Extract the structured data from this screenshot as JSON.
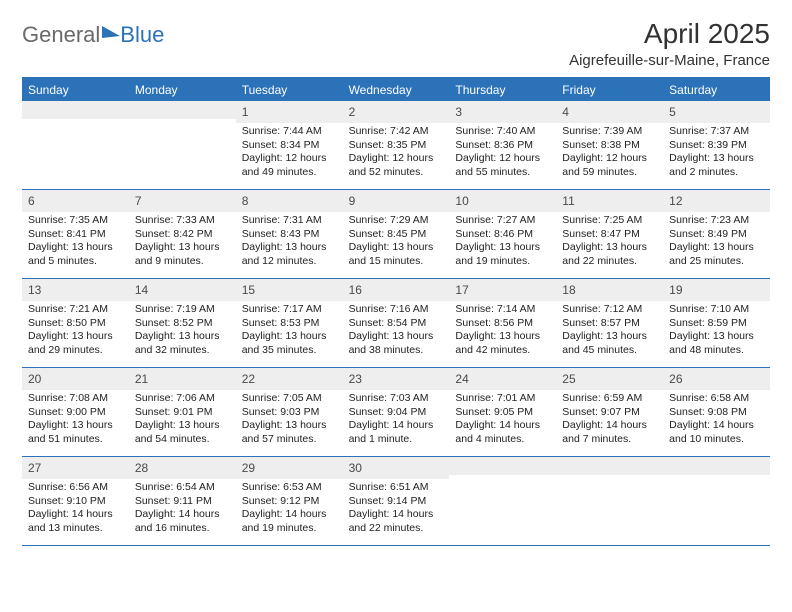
{
  "logo": {
    "general": "General",
    "blue": "Blue"
  },
  "title": {
    "month": "April 2025",
    "location": "Aigrefeuille-sur-Maine, France"
  },
  "weekdays": [
    "Sunday",
    "Monday",
    "Tuesday",
    "Wednesday",
    "Thursday",
    "Friday",
    "Saturday"
  ],
  "styling": {
    "header_bg": "#2b72b8",
    "header_text": "#ffffff",
    "daynum_bg": "#eeeeee",
    "border_color": "#2b72b8",
    "body_text": "#222222",
    "title_fontsize": 28,
    "location_fontsize": 15,
    "weekday_fontsize": 12,
    "daynum_fontsize": 12,
    "body_fontsize": 10.5,
    "page_bg": "#ffffff"
  },
  "weeks": [
    [
      {
        "empty": true
      },
      {
        "empty": true
      },
      {
        "day": "1",
        "sunrise": "Sunrise: 7:44 AM",
        "sunset": "Sunset: 8:34 PM",
        "daylight": "Daylight: 12 hours and 49 minutes."
      },
      {
        "day": "2",
        "sunrise": "Sunrise: 7:42 AM",
        "sunset": "Sunset: 8:35 PM",
        "daylight": "Daylight: 12 hours and 52 minutes."
      },
      {
        "day": "3",
        "sunrise": "Sunrise: 7:40 AM",
        "sunset": "Sunset: 8:36 PM",
        "daylight": "Daylight: 12 hours and 55 minutes."
      },
      {
        "day": "4",
        "sunrise": "Sunrise: 7:39 AM",
        "sunset": "Sunset: 8:38 PM",
        "daylight": "Daylight: 12 hours and 59 minutes."
      },
      {
        "day": "5",
        "sunrise": "Sunrise: 7:37 AM",
        "sunset": "Sunset: 8:39 PM",
        "daylight": "Daylight: 13 hours and 2 minutes."
      }
    ],
    [
      {
        "day": "6",
        "sunrise": "Sunrise: 7:35 AM",
        "sunset": "Sunset: 8:41 PM",
        "daylight": "Daylight: 13 hours and 5 minutes."
      },
      {
        "day": "7",
        "sunrise": "Sunrise: 7:33 AM",
        "sunset": "Sunset: 8:42 PM",
        "daylight": "Daylight: 13 hours and 9 minutes."
      },
      {
        "day": "8",
        "sunrise": "Sunrise: 7:31 AM",
        "sunset": "Sunset: 8:43 PM",
        "daylight": "Daylight: 13 hours and 12 minutes."
      },
      {
        "day": "9",
        "sunrise": "Sunrise: 7:29 AM",
        "sunset": "Sunset: 8:45 PM",
        "daylight": "Daylight: 13 hours and 15 minutes."
      },
      {
        "day": "10",
        "sunrise": "Sunrise: 7:27 AM",
        "sunset": "Sunset: 8:46 PM",
        "daylight": "Daylight: 13 hours and 19 minutes."
      },
      {
        "day": "11",
        "sunrise": "Sunrise: 7:25 AM",
        "sunset": "Sunset: 8:47 PM",
        "daylight": "Daylight: 13 hours and 22 minutes."
      },
      {
        "day": "12",
        "sunrise": "Sunrise: 7:23 AM",
        "sunset": "Sunset: 8:49 PM",
        "daylight": "Daylight: 13 hours and 25 minutes."
      }
    ],
    [
      {
        "day": "13",
        "sunrise": "Sunrise: 7:21 AM",
        "sunset": "Sunset: 8:50 PM",
        "daylight": "Daylight: 13 hours and 29 minutes."
      },
      {
        "day": "14",
        "sunrise": "Sunrise: 7:19 AM",
        "sunset": "Sunset: 8:52 PM",
        "daylight": "Daylight: 13 hours and 32 minutes."
      },
      {
        "day": "15",
        "sunrise": "Sunrise: 7:17 AM",
        "sunset": "Sunset: 8:53 PM",
        "daylight": "Daylight: 13 hours and 35 minutes."
      },
      {
        "day": "16",
        "sunrise": "Sunrise: 7:16 AM",
        "sunset": "Sunset: 8:54 PM",
        "daylight": "Daylight: 13 hours and 38 minutes."
      },
      {
        "day": "17",
        "sunrise": "Sunrise: 7:14 AM",
        "sunset": "Sunset: 8:56 PM",
        "daylight": "Daylight: 13 hours and 42 minutes."
      },
      {
        "day": "18",
        "sunrise": "Sunrise: 7:12 AM",
        "sunset": "Sunset: 8:57 PM",
        "daylight": "Daylight: 13 hours and 45 minutes."
      },
      {
        "day": "19",
        "sunrise": "Sunrise: 7:10 AM",
        "sunset": "Sunset: 8:59 PM",
        "daylight": "Daylight: 13 hours and 48 minutes."
      }
    ],
    [
      {
        "day": "20",
        "sunrise": "Sunrise: 7:08 AM",
        "sunset": "Sunset: 9:00 PM",
        "daylight": "Daylight: 13 hours and 51 minutes."
      },
      {
        "day": "21",
        "sunrise": "Sunrise: 7:06 AM",
        "sunset": "Sunset: 9:01 PM",
        "daylight": "Daylight: 13 hours and 54 minutes."
      },
      {
        "day": "22",
        "sunrise": "Sunrise: 7:05 AM",
        "sunset": "Sunset: 9:03 PM",
        "daylight": "Daylight: 13 hours and 57 minutes."
      },
      {
        "day": "23",
        "sunrise": "Sunrise: 7:03 AM",
        "sunset": "Sunset: 9:04 PM",
        "daylight": "Daylight: 14 hours and 1 minute."
      },
      {
        "day": "24",
        "sunrise": "Sunrise: 7:01 AM",
        "sunset": "Sunset: 9:05 PM",
        "daylight": "Daylight: 14 hours and 4 minutes."
      },
      {
        "day": "25",
        "sunrise": "Sunrise: 6:59 AM",
        "sunset": "Sunset: 9:07 PM",
        "daylight": "Daylight: 14 hours and 7 minutes."
      },
      {
        "day": "26",
        "sunrise": "Sunrise: 6:58 AM",
        "sunset": "Sunset: 9:08 PM",
        "daylight": "Daylight: 14 hours and 10 minutes."
      }
    ],
    [
      {
        "day": "27",
        "sunrise": "Sunrise: 6:56 AM",
        "sunset": "Sunset: 9:10 PM",
        "daylight": "Daylight: 14 hours and 13 minutes."
      },
      {
        "day": "28",
        "sunrise": "Sunrise: 6:54 AM",
        "sunset": "Sunset: 9:11 PM",
        "daylight": "Daylight: 14 hours and 16 minutes."
      },
      {
        "day": "29",
        "sunrise": "Sunrise: 6:53 AM",
        "sunset": "Sunset: 9:12 PM",
        "daylight": "Daylight: 14 hours and 19 minutes."
      },
      {
        "day": "30",
        "sunrise": "Sunrise: 6:51 AM",
        "sunset": "Sunset: 9:14 PM",
        "daylight": "Daylight: 14 hours and 22 minutes."
      },
      {
        "empty": true
      },
      {
        "empty": true
      },
      {
        "empty": true
      }
    ]
  ]
}
